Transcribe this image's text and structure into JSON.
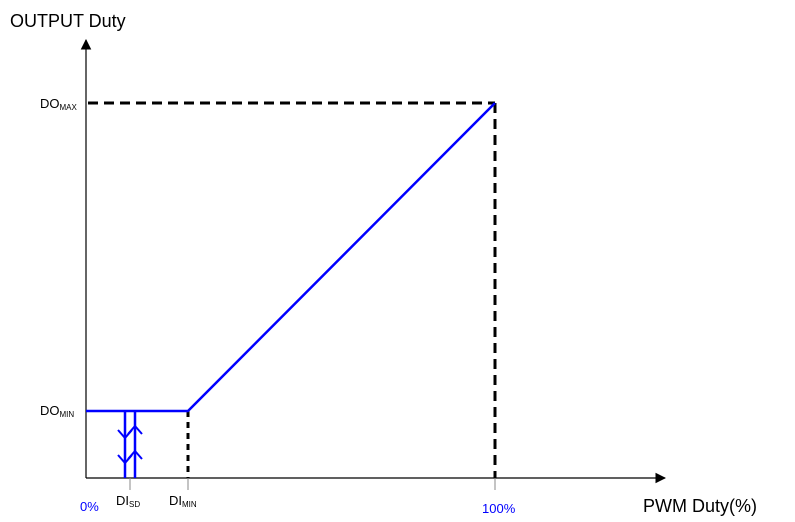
{
  "labels": {
    "y_axis_title": "OUTPUT Duty",
    "x_axis_title": "PWM Duty(%)",
    "do_max_main": "DO",
    "do_max_sub": "MAX",
    "do_min_main": "DO",
    "do_min_sub": "MIN",
    "di_sd_main": "DI",
    "di_sd_sub": "SD",
    "di_min_main": "DI",
    "di_min_sub": "MIN",
    "zero_percent": "0%",
    "hundred_percent": "100%"
  },
  "colors": {
    "axis": "#000000",
    "curve": "#0000ff",
    "guide": "#000000",
    "highlight_label": "#0000ff"
  }
}
